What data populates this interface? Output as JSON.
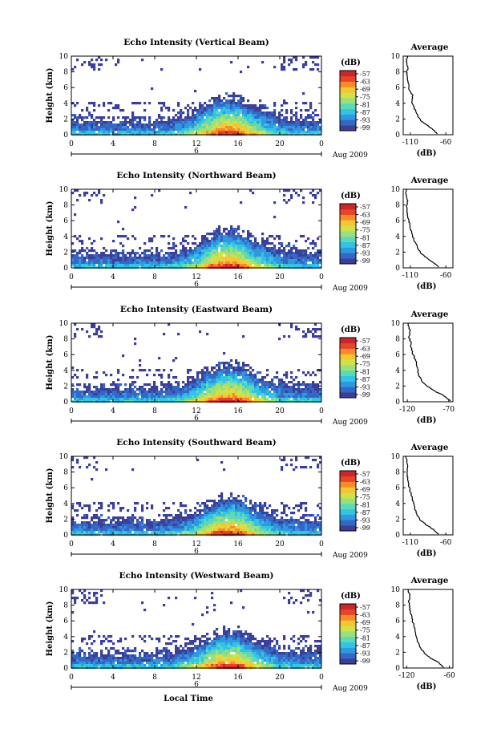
{
  "chart_data": [
    {
      "type": "heatmap",
      "title": "Echo Intensity (Vertical Beam)",
      "ylabel": "Height (km)",
      "xlim": [
        0,
        24
      ],
      "ylim": [
        0,
        10
      ],
      "x_ticks": [
        "0",
        "4",
        "8",
        "12",
        "16",
        "20",
        "0"
      ],
      "y_ticks": [
        "0",
        "2",
        "4",
        "6",
        "8",
        "10"
      ],
      "date_mark": "6",
      "date_label": "Aug 2009",
      "colorbar_label": "(dB)",
      "colorbar_ticks": [
        "-57",
        "-63",
        "-69",
        "-75",
        "-81",
        "-87",
        "-93",
        "-99"
      ],
      "avg_title": "Average",
      "avg_xlabel": "(dB)",
      "avg_xlim": [
        -120,
        -50
      ],
      "avg_xticks": [
        "-110",
        "-60"
      ],
      "avg_profile": [
        [
          -72,
          0.1
        ],
        [
          -80,
          0.8
        ],
        [
          -88,
          1.3
        ],
        [
          -95,
          1.8
        ],
        [
          -100,
          2.5
        ],
        [
          -104,
          3.3
        ],
        [
          -108,
          4.2
        ],
        [
          -107,
          5.0
        ],
        [
          -111,
          5.6
        ],
        [
          -113,
          6.5
        ],
        [
          -114,
          7.3
        ],
        [
          -115,
          8.0
        ],
        [
          -113,
          8.6
        ],
        [
          -116,
          9.3
        ],
        [
          -114,
          10.0
        ]
      ]
    },
    {
      "type": "heatmap",
      "title": "Echo Intensity (Northward Beam)",
      "ylabel": "Height (km)",
      "xlim": [
        0,
        24
      ],
      "ylim": [
        0,
        10
      ],
      "x_ticks": [
        "0",
        "4",
        "8",
        "12",
        "16",
        "20",
        "0"
      ],
      "y_ticks": [
        "0",
        "2",
        "4",
        "6",
        "8",
        "10"
      ],
      "date_mark": "6",
      "date_label": "Aug 2009",
      "colorbar_label": "(dB)",
      "colorbar_ticks": [
        "-57",
        "-63",
        "-69",
        "-75",
        "-81",
        "-87",
        "-93",
        "-99"
      ],
      "avg_title": "Average",
      "avg_xlabel": "(dB)",
      "avg_xlim": [
        -120,
        -50
      ],
      "avg_xticks": [
        "-110",
        "-60"
      ],
      "avg_profile": [
        [
          -70,
          0.1
        ],
        [
          -78,
          0.7
        ],
        [
          -86,
          1.2
        ],
        [
          -94,
          1.8
        ],
        [
          -100,
          2.6
        ],
        [
          -104,
          3.4
        ],
        [
          -108,
          4.3
        ],
        [
          -110,
          5.2
        ],
        [
          -112,
          6.0
        ],
        [
          -114,
          6.9
        ],
        [
          -115,
          7.7
        ],
        [
          -114,
          8.5
        ],
        [
          -116,
          9.3
        ],
        [
          -115,
          10.0
        ]
      ]
    },
    {
      "type": "heatmap",
      "title": "Echo Intensity (Eastward Beam)",
      "ylabel": "Height (km)",
      "xlim": [
        0,
        24
      ],
      "ylim": [
        0,
        10
      ],
      "x_ticks": [
        "0",
        "4",
        "8",
        "12",
        "16",
        "20",
        "0"
      ],
      "y_ticks": [
        "0",
        "2",
        "4",
        "6",
        "8",
        "10"
      ],
      "date_mark": "6",
      "date_label": "Aug 2009",
      "colorbar_label": "(dB)",
      "colorbar_ticks": [
        "-57",
        "-63",
        "-69",
        "-75",
        "-81",
        "-87",
        "-93",
        "-99"
      ],
      "avg_title": "Average",
      "avg_xlabel": "(dB)",
      "avg_xlim": [
        -125,
        -65
      ],
      "avg_xticks": [
        "-120",
        "-70"
      ],
      "avg_profile": [
        [
          -68,
          0.1
        ],
        [
          -76,
          0.8
        ],
        [
          -86,
          1.3
        ],
        [
          -95,
          1.9
        ],
        [
          -102,
          2.6
        ],
        [
          -106,
          3.4
        ],
        [
          -108,
          4.3
        ],
        [
          -109,
          5.1
        ],
        [
          -112,
          5.7
        ],
        [
          -115,
          6.6
        ],
        [
          -116,
          7.5
        ],
        [
          -118,
          8.3
        ],
        [
          -117,
          9.1
        ],
        [
          -119,
          10.0
        ]
      ]
    },
    {
      "type": "heatmap",
      "title": "Echo Intensity (Southward Beam)",
      "ylabel": "Height (km)",
      "xlim": [
        0,
        24
      ],
      "ylim": [
        0,
        10
      ],
      "x_ticks": [
        "0",
        "4",
        "8",
        "12",
        "16",
        "20",
        "0"
      ],
      "y_ticks": [
        "0",
        "2",
        "4",
        "6",
        "8",
        "10"
      ],
      "date_mark": "6",
      "date_label": "Aug 2009",
      "colorbar_label": "(dB)",
      "colorbar_ticks": [
        "-57",
        "-63",
        "-69",
        "-75",
        "-81",
        "-87",
        "-93",
        "-99"
      ],
      "avg_title": "Average",
      "avg_xlabel": "(dB)",
      "avg_xlim": [
        -120,
        -50
      ],
      "avg_xticks": [
        "-110",
        "-60"
      ],
      "avg_profile": [
        [
          -70,
          0.1
        ],
        [
          -79,
          0.8
        ],
        [
          -88,
          1.3
        ],
        [
          -96,
          1.9
        ],
        [
          -101,
          2.7
        ],
        [
          -104,
          3.5
        ],
        [
          -106,
          4.2
        ],
        [
          -108,
          5.0
        ],
        [
          -111,
          5.8
        ],
        [
          -113,
          6.7
        ],
        [
          -114,
          7.5
        ],
        [
          -115,
          8.3
        ],
        [
          -114,
          9.1
        ],
        [
          -116,
          10.0
        ]
      ]
    },
    {
      "type": "heatmap",
      "title": "Echo Intensity (Westward Beam)",
      "ylabel": "Height (km)",
      "xlabel": "Local Time",
      "xlim": [
        0,
        24
      ],
      "ylim": [
        0,
        10
      ],
      "x_ticks": [
        "0",
        "4",
        "8",
        "12",
        "16",
        "20",
        "0"
      ],
      "y_ticks": [
        "0",
        "2",
        "4",
        "6",
        "8",
        "10"
      ],
      "date_mark": "6",
      "date_label": "Aug 2009",
      "colorbar_label": "(dB)",
      "colorbar_ticks": [
        "-57",
        "-63",
        "-69",
        "-75",
        "-81",
        "-87",
        "-93",
        "-99"
      ],
      "avg_title": "Average",
      "avg_xlabel": "(dB)",
      "avg_xlim": [
        -125,
        -55
      ],
      "avg_xticks": [
        "-120",
        "-60"
      ],
      "avg_profile": [
        [
          -68,
          0.1
        ],
        [
          -77,
          0.8
        ],
        [
          -87,
          1.3
        ],
        [
          -95,
          1.9
        ],
        [
          -101,
          2.6
        ],
        [
          -105,
          3.4
        ],
        [
          -107,
          4.3
        ],
        [
          -109,
          5.2
        ],
        [
          -112,
          6.0
        ],
        [
          -114,
          6.8
        ],
        [
          -116,
          7.6
        ],
        [
          -117,
          8.4
        ],
        [
          -116,
          9.2
        ],
        [
          -118,
          10.0
        ]
      ]
    }
  ],
  "colormap": [
    "#3b3f97",
    "#3468c4",
    "#2f98de",
    "#33c3e6",
    "#5fd8b4",
    "#9be07a",
    "#d3e04a",
    "#f6c632",
    "#f78a2a",
    "#e6452a",
    "#c8272d"
  ]
}
